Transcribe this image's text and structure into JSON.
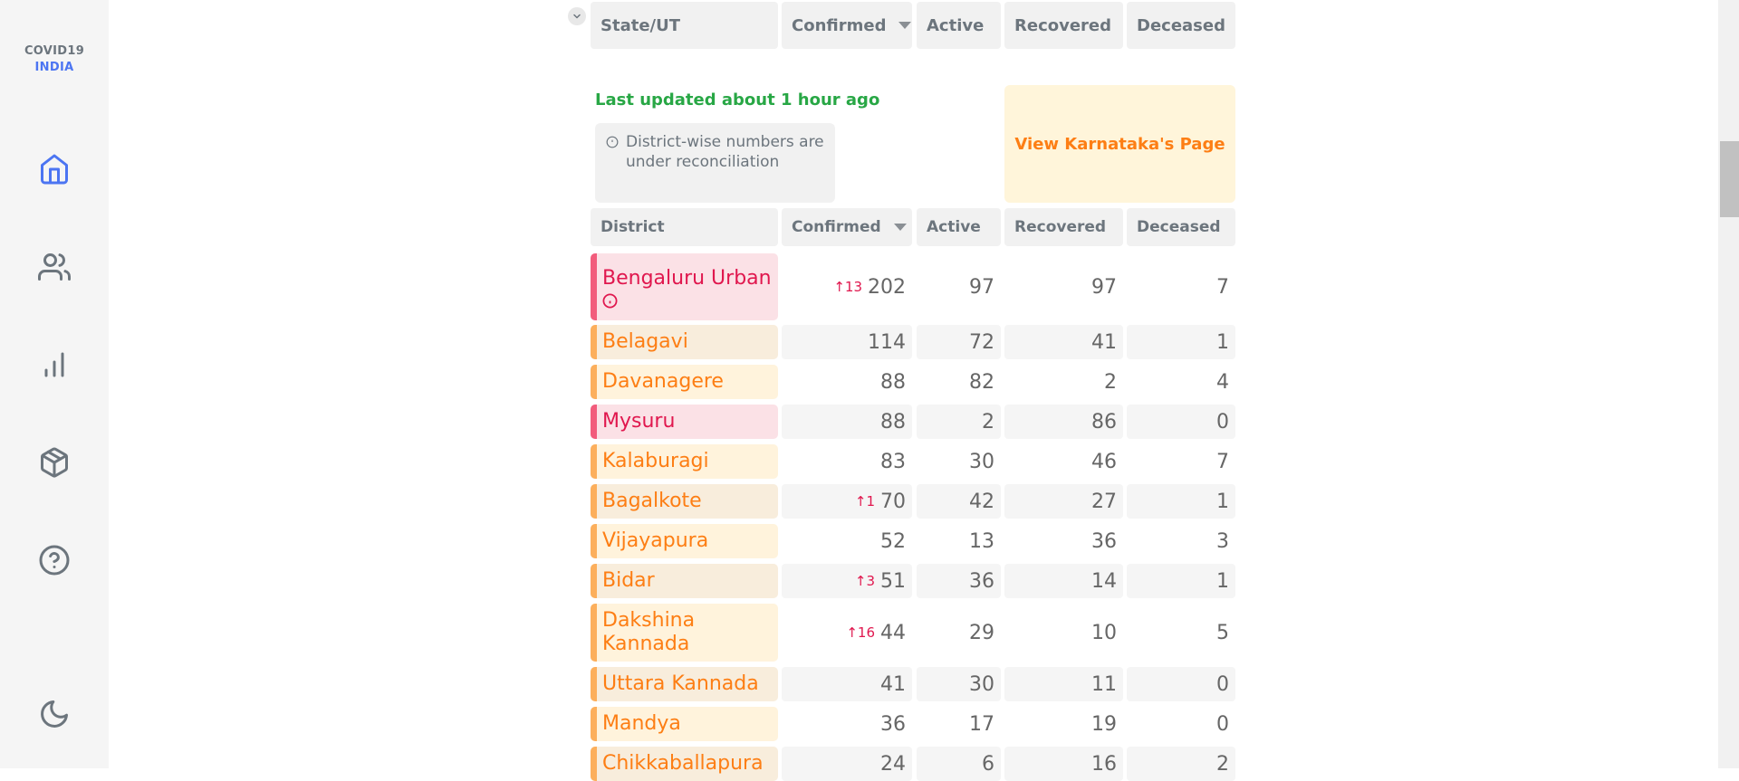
{
  "brand": {
    "line1": "COVID19",
    "line2": "INDIA"
  },
  "nav": [
    {
      "name": "home-icon"
    },
    {
      "name": "users-icon"
    },
    {
      "name": "bar-chart-icon"
    },
    {
      "name": "package-icon"
    },
    {
      "name": "help-icon"
    },
    {
      "name": "moon-icon"
    }
  ],
  "state_header": {
    "col1": "State/UT",
    "col2": "Confirmed",
    "col3": "Active",
    "col4": "Recovered",
    "col5": "Deceased"
  },
  "last_updated": "Last updated about 1 hour ago",
  "notice": "District-wise numbers are under reconciliation",
  "view_page": "View Karnataka's Page",
  "district_header": {
    "col1": "District",
    "col2": "Confirmed",
    "col3": "Active",
    "col4": "Recovered",
    "col5": "Deceased"
  },
  "colors": {
    "red": "#e0174e",
    "orange": "#fd7e14",
    "green": "#28a745",
    "blue": "#4c75f2"
  },
  "districts": [
    {
      "name": "Bengaluru Urban",
      "delta": "↑13",
      "confirmed": "202",
      "active": "97",
      "recovered": "97",
      "deceased": "7",
      "tone": "red",
      "info": true
    },
    {
      "name": "Belagavi",
      "delta": "",
      "confirmed": "114",
      "active": "72",
      "recovered": "41",
      "deceased": "1",
      "tone": "orange"
    },
    {
      "name": "Davanagere",
      "delta": "",
      "confirmed": "88",
      "active": "82",
      "recovered": "2",
      "deceased": "4",
      "tone": "orange"
    },
    {
      "name": "Mysuru",
      "delta": "",
      "confirmed": "88",
      "active": "2",
      "recovered": "86",
      "deceased": "0",
      "tone": "red"
    },
    {
      "name": "Kalaburagi",
      "delta": "",
      "confirmed": "83",
      "active": "30",
      "recovered": "46",
      "deceased": "7",
      "tone": "orange"
    },
    {
      "name": "Bagalkote",
      "delta": "↑1",
      "confirmed": "70",
      "active": "42",
      "recovered": "27",
      "deceased": "1",
      "tone": "orange"
    },
    {
      "name": "Vijayapura",
      "delta": "",
      "confirmed": "52",
      "active": "13",
      "recovered": "36",
      "deceased": "3",
      "tone": "orange"
    },
    {
      "name": "Bidar",
      "delta": "↑3",
      "confirmed": "51",
      "active": "36",
      "recovered": "14",
      "deceased": "1",
      "tone": "orange"
    },
    {
      "name": "Dakshina Kannada",
      "delta": "↑16",
      "confirmed": "44",
      "active": "29",
      "recovered": "10",
      "deceased": "5",
      "tone": "orange"
    },
    {
      "name": "Uttara Kannada",
      "delta": "",
      "confirmed": "41",
      "active": "30",
      "recovered": "11",
      "deceased": "0",
      "tone": "orange"
    },
    {
      "name": "Mandya",
      "delta": "",
      "confirmed": "36",
      "active": "17",
      "recovered": "19",
      "deceased": "0",
      "tone": "orange"
    },
    {
      "name": "Chikkaballapura",
      "delta": "",
      "confirmed": "24",
      "active": "6",
      "recovered": "16",
      "deceased": "2",
      "tone": "orange"
    }
  ]
}
